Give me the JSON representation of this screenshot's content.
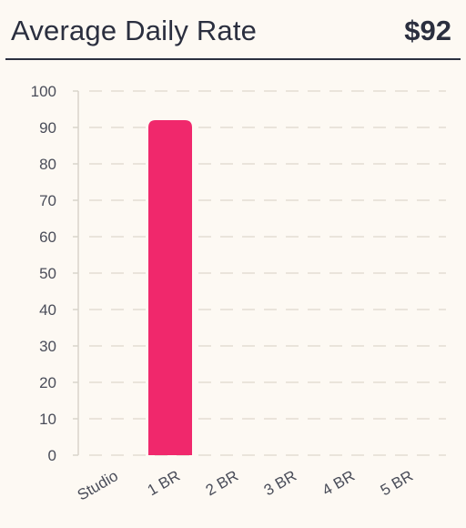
{
  "header": {
    "title": "Average Daily Rate",
    "value": "$92"
  },
  "colors": {
    "bar": "#f0286c",
    "text": "#2b2f3f",
    "axis_text": "#4a4d59",
    "grid": "#e3ddd3",
    "background": "#fdf9f3"
  },
  "chart_data": {
    "type": "bar",
    "categories": [
      "Studio",
      "1 BR",
      "2 BR",
      "3 BR",
      "4 BR",
      "5 BR"
    ],
    "values": [
      0,
      92,
      0,
      0,
      0,
      0
    ],
    "ylim": [
      0,
      100
    ],
    "yticks": [
      0,
      10,
      20,
      30,
      40,
      50,
      60,
      70,
      80,
      90,
      100
    ],
    "grid": true,
    "xlabel": "",
    "ylabel": ""
  }
}
